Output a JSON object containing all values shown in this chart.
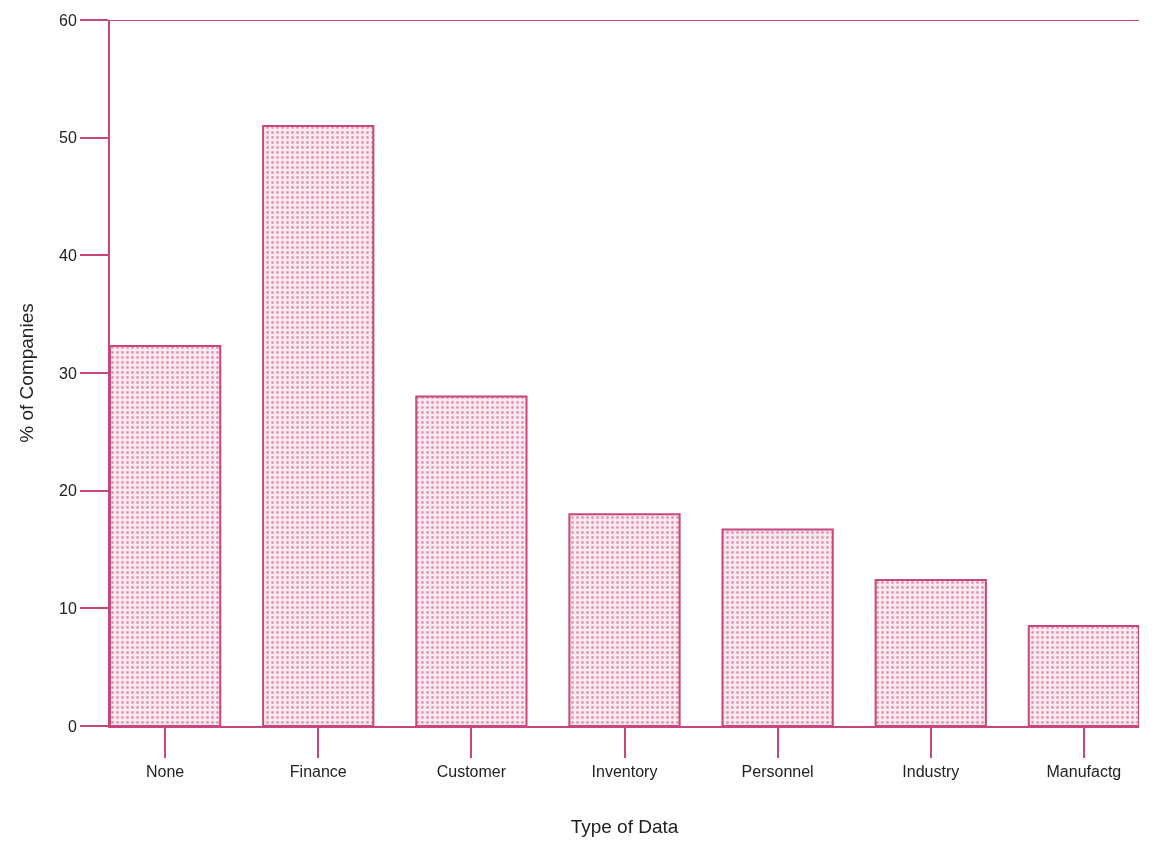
{
  "chart_data": {
    "type": "bar",
    "xlabel": "Type of Data",
    "ylabel": "% of Companies",
    "categories": [
      "None",
      "Finance",
      "Customer",
      "Inventory",
      "Personnel",
      "Industry",
      "Manufactg"
    ],
    "values": [
      32.3,
      51,
      28,
      18,
      16.7,
      12.4,
      8.5
    ],
    "color": "#c8467a",
    "ylim": [
      0,
      60
    ],
    "yticks": [
      0,
      10,
      20,
      30,
      40,
      50,
      60
    ]
  }
}
